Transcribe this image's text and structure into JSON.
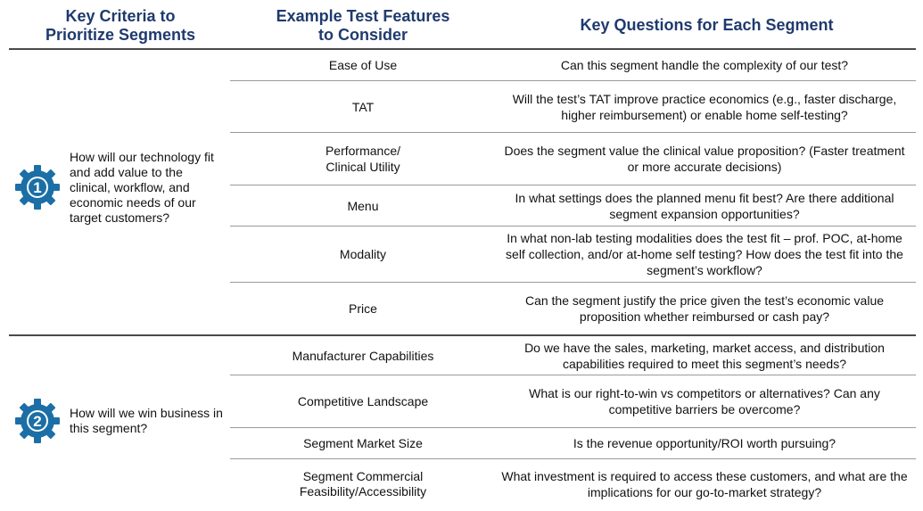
{
  "headers": {
    "criteria": "Key Criteria to\nPrioritize Segments",
    "features": "Example Test Features\nto Consider",
    "questions": "Key Questions for Each Segment"
  },
  "colors": {
    "header_text": "#1f3a6e",
    "gear": "#1b6fa6"
  },
  "criteria": [
    {
      "number": "1",
      "text": "How will our technology fit and add value to the clinical, workflow, and economic needs of our target customers?"
    },
    {
      "number": "2",
      "text": "How will we win business in this segment?"
    }
  ],
  "rows": [
    {
      "feature": "Ease of Use",
      "question": "Can this segment handle the complexity of our test?"
    },
    {
      "feature": "TAT",
      "question": "Will the test’s TAT improve practice economics (e.g., faster discharge, higher reimbursement) or enable home self-testing?"
    },
    {
      "feature": "Performance/\nClinical Utility",
      "question": "Does the segment value the clinical value proposition? (Faster treatment or more accurate decisions)"
    },
    {
      "feature": "Menu",
      "question": "In what settings does the planned menu fit best? Are there additional segment expansion opportunities?"
    },
    {
      "feature": "Modality",
      "question": "In what non-lab testing modalities does the test fit – prof. POC, at-home self collection, and/or at-home self testing? How does the test fit into the segment’s workflow?"
    },
    {
      "feature": "Price",
      "question": "Can the segment justify the price given the test’s economic value proposition whether reimbursed or cash pay?"
    },
    {
      "feature": "Manufacturer Capabilities",
      "question": "Do we have the sales, marketing, market access, and distribution capabilities required to meet this segment’s needs?"
    },
    {
      "feature": "Competitive Landscape",
      "question": "What is our right-to-win vs competitors or alternatives? Can any competitive barriers be overcome?"
    },
    {
      "feature": "Segment Market Size",
      "question": "Is the revenue opportunity/ROI worth pursuing?"
    },
    {
      "feature": "Segment Commercial\nFeasibility/Accessibility",
      "question": "What investment is required to access these customers, and what are the implications for our go-to-market strategy?"
    }
  ]
}
